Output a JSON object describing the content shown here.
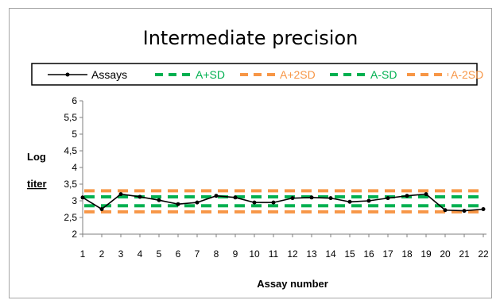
{
  "chart_data": {
    "type": "line",
    "title": "Intermediate precision",
    "xlabel": "Assay number",
    "ylabel_line1": "Log",
    "ylabel_line2": "titer",
    "x": [
      1,
      2,
      3,
      4,
      5,
      6,
      7,
      8,
      9,
      10,
      11,
      12,
      13,
      14,
      15,
      16,
      17,
      18,
      19,
      20,
      21,
      22
    ],
    "xlim": [
      1,
      22
    ],
    "ylim": [
      2,
      6
    ],
    "yticks": [
      "2",
      "2,5",
      "3",
      "3,5",
      "4",
      "4,5",
      "5",
      "5,5",
      "6"
    ],
    "yticks_values": [
      2,
      2.5,
      3,
      3.5,
      4,
      4.5,
      5,
      5.5,
      6
    ],
    "series": [
      {
        "name": "Assays",
        "color": "#000000",
        "style": "solid-marker",
        "values": [
          3.1,
          2.75,
          3.2,
          3.12,
          3.02,
          2.9,
          2.95,
          3.15,
          3.1,
          2.95,
          2.95,
          3.08,
          3.1,
          3.08,
          2.97,
          3.0,
          3.08,
          3.15,
          3.2,
          2.72,
          2.7,
          2.75
        ]
      },
      {
        "name": "A+SD",
        "color": "#00b050",
        "style": "dashed",
        "value": 3.12
      },
      {
        "name": "A+2SD",
        "color": "#f79646",
        "style": "dashed",
        "value": 3.3
      },
      {
        "name": "A-SD",
        "color": "#00b050",
        "style": "dashed",
        "value": 2.85
      },
      {
        "name": "A-2SD",
        "color": "#f79646",
        "style": "dashed",
        "value": 2.67
      }
    ],
    "grid": false,
    "legend_position": "top"
  }
}
